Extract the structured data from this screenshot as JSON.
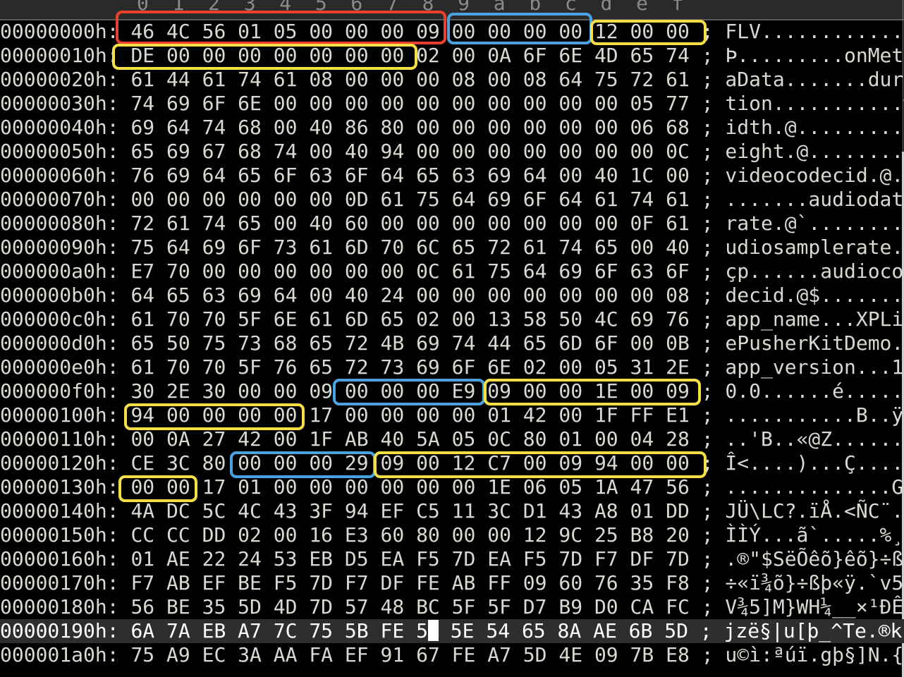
{
  "column_headers": [
    "0",
    "1",
    "2",
    "3",
    "4",
    "5",
    "6",
    "7",
    "8",
    "9",
    "a",
    "b",
    "c",
    "d",
    "e",
    "f"
  ],
  "cursor": {
    "row": 25,
    "col": 8,
    "typed": "5"
  },
  "colors": {
    "red": "#e8402a",
    "blue": "#4aa3df",
    "yellow": "#f5df45",
    "text": "#d9d9d2"
  },
  "rows": [
    {
      "addr": "00000000h:",
      "hex": [
        "46",
        "4C",
        "56",
        "01",
        "05",
        "00",
        "00",
        "00",
        "09",
        "00",
        "00",
        "00",
        "00",
        "12",
        "00",
        "00"
      ],
      "ascii": "FLV............."
    },
    {
      "addr": "00000010h:",
      "hex": [
        "DE",
        "00",
        "00",
        "00",
        "00",
        "00",
        "00",
        "00",
        "02",
        "00",
        "0A",
        "6F",
        "6E",
        "4D",
        "65",
        "74"
      ],
      "ascii": "Þ.........onMet"
    },
    {
      "addr": "00000020h:",
      "hex": [
        "61",
        "44",
        "61",
        "74",
        "61",
        "08",
        "00",
        "00",
        "00",
        "08",
        "00",
        "08",
        "64",
        "75",
        "72",
        "61"
      ],
      "ascii": "aData.......dura"
    },
    {
      "addr": "00000030h:",
      "hex": [
        "74",
        "69",
        "6F",
        "6E",
        "00",
        "00",
        "00",
        "00",
        "00",
        "00",
        "00",
        "00",
        "00",
        "00",
        "05",
        "77"
      ],
      "ascii": "tion...........w"
    },
    {
      "addr": "00000040h:",
      "hex": [
        "69",
        "64",
        "74",
        "68",
        "00",
        "40",
        "86",
        "80",
        "00",
        "00",
        "00",
        "00",
        "00",
        "00",
        "06",
        "68"
      ],
      "ascii": "idth.@.........h"
    },
    {
      "addr": "00000050h:",
      "hex": [
        "65",
        "69",
        "67",
        "68",
        "74",
        "00",
        "40",
        "94",
        "00",
        "00",
        "00",
        "00",
        "00",
        "00",
        "00",
        "0C"
      ],
      "ascii": "eight.@........."
    },
    {
      "addr": "00000060h:",
      "hex": [
        "76",
        "69",
        "64",
        "65",
        "6F",
        "63",
        "6F",
        "64",
        "65",
        "63",
        "69",
        "64",
        "00",
        "40",
        "1C",
        "00"
      ],
      "ascii": "videocodecid.@.."
    },
    {
      "addr": "00000070h:",
      "hex": [
        "00",
        "00",
        "00",
        "00",
        "00",
        "00",
        "0D",
        "61",
        "75",
        "64",
        "69",
        "6F",
        "64",
        "61",
        "74",
        "61"
      ],
      "ascii": ".......audiodata"
    },
    {
      "addr": "00000080h:",
      "hex": [
        "72",
        "61",
        "74",
        "65",
        "00",
        "40",
        "60",
        "00",
        "00",
        "00",
        "00",
        "00",
        "00",
        "00",
        "0F",
        "61"
      ],
      "ascii": "rate.@`........a"
    },
    {
      "addr": "00000090h:",
      "hex": [
        "75",
        "64",
        "69",
        "6F",
        "73",
        "61",
        "6D",
        "70",
        "6C",
        "65",
        "72",
        "61",
        "74",
        "65",
        "00",
        "40"
      ],
      "ascii": "udiosamplerate.@"
    },
    {
      "addr": "000000a0h:",
      "hex": [
        "E7",
        "70",
        "00",
        "00",
        "00",
        "00",
        "00",
        "00",
        "0C",
        "61",
        "75",
        "64",
        "69",
        "6F",
        "63",
        "6F"
      ],
      "ascii": "çp......audioco"
    },
    {
      "addr": "000000b0h:",
      "hex": [
        "64",
        "65",
        "63",
        "69",
        "64",
        "00",
        "40",
        "24",
        "00",
        "00",
        "00",
        "00",
        "00",
        "00",
        "00",
        "08"
      ],
      "ascii": "decid.@$........"
    },
    {
      "addr": "000000c0h:",
      "hex": [
        "61",
        "70",
        "70",
        "5F",
        "6E",
        "61",
        "6D",
        "65",
        "02",
        "00",
        "13",
        "58",
        "50",
        "4C",
        "69",
        "76"
      ],
      "ascii": "app_name...XPLiv"
    },
    {
      "addr": "000000d0h:",
      "hex": [
        "65",
        "50",
        "75",
        "73",
        "68",
        "65",
        "72",
        "4B",
        "69",
        "74",
        "44",
        "65",
        "6D",
        "6F",
        "00",
        "0B"
      ],
      "ascii": "ePusherKitDemo.."
    },
    {
      "addr": "000000e0h:",
      "hex": [
        "61",
        "70",
        "70",
        "5F",
        "76",
        "65",
        "72",
        "73",
        "69",
        "6F",
        "6E",
        "02",
        "00",
        "05",
        "31",
        "2E"
      ],
      "ascii": "app_version...1."
    },
    {
      "addr": "000000f0h:",
      "hex": [
        "30",
        "2E",
        "30",
        "00",
        "00",
        "09",
        "00",
        "00",
        "00",
        "E9",
        "09",
        "00",
        "00",
        "1E",
        "00",
        "09"
      ],
      "ascii": "0.0......é......"
    },
    {
      "addr": "00000100h:",
      "hex": [
        "94",
        "00",
        "00",
        "00",
        "00",
        "17",
        "00",
        "00",
        "00",
        "00",
        "01",
        "42",
        "00",
        "1F",
        "FF",
        "E1"
      ],
      "ascii": "...........B..ÿá"
    },
    {
      "addr": "00000110h:",
      "hex": [
        "00",
        "0A",
        "27",
        "42",
        "00",
        "1F",
        "AB",
        "40",
        "5A",
        "05",
        "0C",
        "80",
        "01",
        "00",
        "04",
        "28"
      ],
      "ascii": "..'B..«@Z......("
    },
    {
      "addr": "00000120h:",
      "hex": [
        "CE",
        "3C",
        "80",
        "00",
        "00",
        "00",
        "29",
        "09",
        "00",
        "12",
        "C7",
        "00",
        "09",
        "94",
        "00",
        "00"
      ],
      "ascii": "Î<....)...Ç....."
    },
    {
      "addr": "00000130h:",
      "hex": [
        "00",
        "00",
        "17",
        "01",
        "00",
        "00",
        "00",
        "00",
        "00",
        "00",
        "1E",
        "06",
        "05",
        "1A",
        "47",
        "56"
      ],
      "ascii": "..............GV"
    },
    {
      "addr": "00000140h:",
      "hex": [
        "4A",
        "DC",
        "5C",
        "4C",
        "43",
        "3F",
        "94",
        "EF",
        "C5",
        "11",
        "3C",
        "D1",
        "43",
        "A8",
        "01",
        "DD"
      ],
      "ascii": "JÜ\\LC?.ïÅ.<ÑC¨.Ý"
    },
    {
      "addr": "00000150h:",
      "hex": [
        "CC",
        "CC",
        "DD",
        "02",
        "00",
        "16",
        "E3",
        "60",
        "80",
        "00",
        "00",
        "12",
        "9C",
        "25",
        "B8",
        "20"
      ],
      "ascii": "ÌÌÝ...ã`.....%¸ "
    },
    {
      "addr": "00000160h:",
      "hex": [
        "01",
        "AE",
        "22",
        "24",
        "53",
        "EB",
        "D5",
        "EA",
        "F5",
        "7D",
        "EA",
        "F5",
        "7D",
        "F7",
        "DF",
        "7D"
      ],
      "ascii": ".®\"$SëÕêõ}êõ}÷ß}"
    },
    {
      "addr": "00000170h:",
      "hex": [
        "F7",
        "AB",
        "EF",
        "BE",
        "F5",
        "7D",
        "F7",
        "DF",
        "FE",
        "AB",
        "FF",
        "09",
        "60",
        "76",
        "35",
        "F8"
      ],
      "ascii": "÷«ï¾õ}÷ßþ«ÿ.`v5ø"
    },
    {
      "addr": "00000180h:",
      "hex": [
        "56",
        "BE",
        "35",
        "5D",
        "4D",
        "7D",
        "57",
        "48",
        "BC",
        "5F",
        "5F",
        "D7",
        "B9",
        "D0",
        "CA",
        "FC"
      ],
      "ascii": "V¾5]M}WH¼__×¹ÐÊü"
    },
    {
      "addr": "00000190h:",
      "hex": [
        "6A",
        "7A",
        "EB",
        "A7",
        "7C",
        "75",
        "5B",
        "FE",
        "5",
        "5E",
        "54",
        "65",
        "8A",
        "AE",
        "6B",
        "5D"
      ],
      "ascii": "jzë§|u[þ_^Te.®k]"
    },
    {
      "addr": "000001a0h:",
      "hex": [
        "75",
        "A9",
        "EC",
        "3A",
        "AA",
        "FA",
        "EF",
        "91",
        "67",
        "FE",
        "A7",
        "5D",
        "4E",
        "09",
        "7B",
        "E8"
      ],
      "ascii": "u©ì:ªúï.gþ§]N.{è"
    }
  ]
}
